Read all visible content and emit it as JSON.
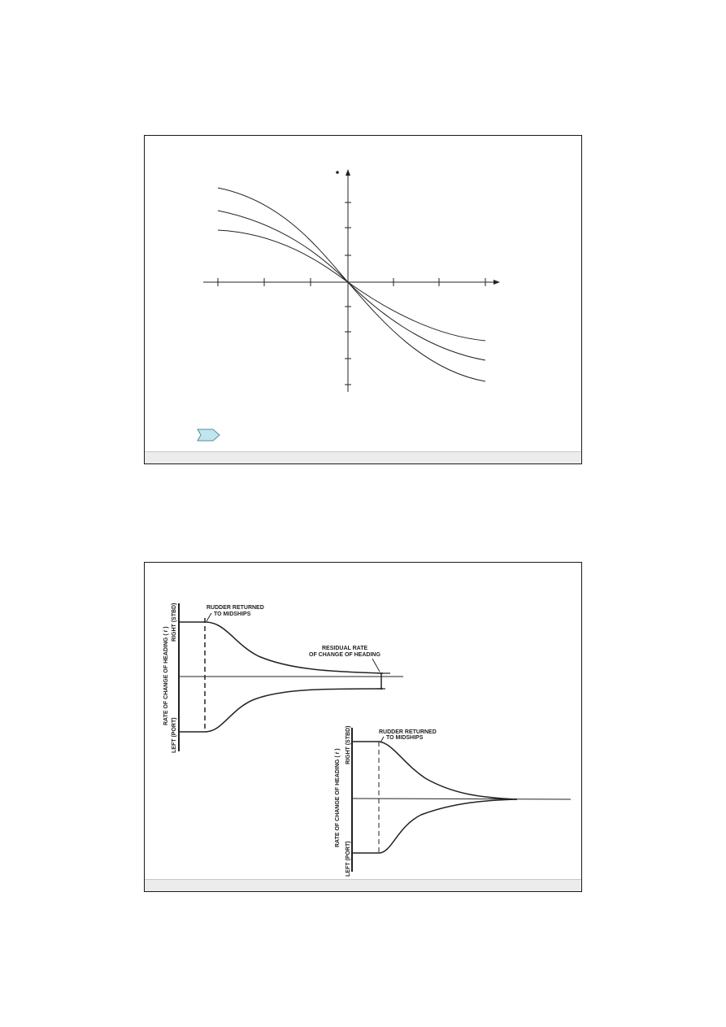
{
  "slide1": {
    "nav_arrow_icon": "chevron-right-icon",
    "nav_arrow_color": "#bfe6ec",
    "curves": [
      "curve-steep",
      "curve-mid",
      "curve-shallow"
    ]
  },
  "slide2": {
    "upper_plot": {
      "y_axis_label": "RATE OF CHANGE OF HEADING ( ṙ )",
      "top_label": "RIGHT (STBD)",
      "bottom_label": "LEFT (PORT)",
      "rudder_note": [
        "RUDDER RETURNED",
        "TO MIDSHIPS"
      ],
      "residual_note": [
        "RESIDUAL RATE",
        "OF CHANGE OF HEADING"
      ]
    },
    "lower_plot": {
      "y_axis_label": "RATE OF CHANGE OF HEADING ( ṙ )",
      "top_label": "RIGHT (STBD)",
      "bottom_label": "LEFT (PORT)",
      "rudder_note": [
        "RUDDER RETURNED",
        "TO MIDSHIPS"
      ]
    }
  }
}
